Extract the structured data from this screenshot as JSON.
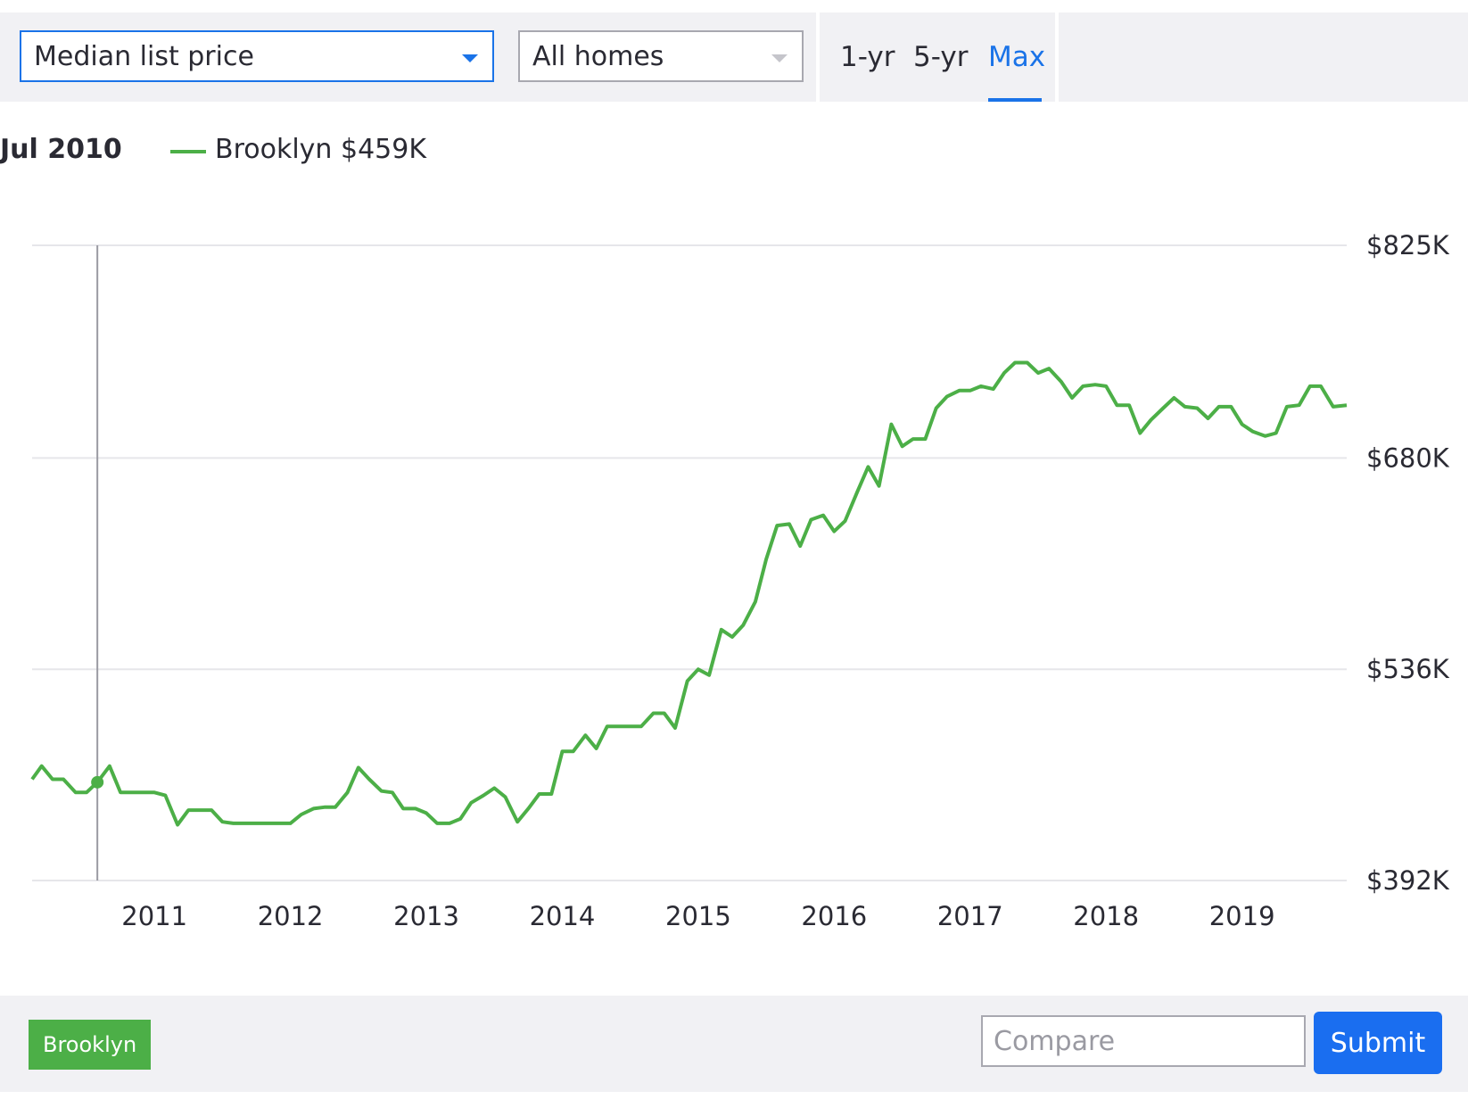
{
  "controls": {
    "metric_select": {
      "value": "Median list price"
    },
    "home_type_select": {
      "value": "All homes"
    },
    "ranges": [
      {
        "label": "1-yr",
        "active": false
      },
      {
        "label": "5-yr",
        "active": false
      },
      {
        "label": "Max",
        "active": true
      }
    ]
  },
  "legend": {
    "date": "Jul 2010",
    "entry": "Brooklyn $459K"
  },
  "colors": {
    "series": "#4caf47",
    "accent": "#1a73e8"
  },
  "bottom": {
    "chip_label": "Brooklyn",
    "compare_placeholder": "Compare",
    "submit_label": "Submit"
  },
  "chart_data": {
    "type": "line",
    "ylim": [
      392,
      825
    ],
    "y_unit": "$K",
    "y_ticks": [
      "$825K",
      "$680K",
      "$536K",
      "$392K"
    ],
    "y_tick_values": [
      825,
      680,
      536,
      392
    ],
    "x_ticks": [
      "2011",
      "2012",
      "2013",
      "2014",
      "2015",
      "2016",
      "2017",
      "2018",
      "2019"
    ],
    "x_tick_values": [
      2011,
      2012,
      2013,
      2014,
      2015,
      2016,
      2017,
      2018,
      2019
    ],
    "x_range": [
      2010.1,
      2019.77
    ],
    "grid": true,
    "highlight": {
      "x": 2010.58,
      "y": 459
    },
    "series": [
      {
        "name": "Brooklyn",
        "points": [
          [
            2010.1,
            461
          ],
          [
            2010.17,
            470
          ],
          [
            2010.25,
            461
          ],
          [
            2010.33,
            461
          ],
          [
            2010.42,
            452
          ],
          [
            2010.5,
            452
          ],
          [
            2010.58,
            459
          ],
          [
            2010.67,
            470
          ],
          [
            2010.75,
            452
          ],
          [
            2010.83,
            452
          ],
          [
            2010.92,
            452
          ],
          [
            2011.0,
            452
          ],
          [
            2011.08,
            450
          ],
          [
            2011.17,
            430
          ],
          [
            2011.25,
            440
          ],
          [
            2011.33,
            440
          ],
          [
            2011.42,
            440
          ],
          [
            2011.5,
            432
          ],
          [
            2011.58,
            431
          ],
          [
            2011.67,
            431
          ],
          [
            2011.75,
            431
          ],
          [
            2011.83,
            431
          ],
          [
            2011.92,
            431
          ],
          [
            2012.0,
            431
          ],
          [
            2012.08,
            437
          ],
          [
            2012.17,
            441
          ],
          [
            2012.25,
            442
          ],
          [
            2012.33,
            442
          ],
          [
            2012.42,
            452
          ],
          [
            2012.5,
            469
          ],
          [
            2012.58,
            461
          ],
          [
            2012.67,
            453
          ],
          [
            2012.75,
            452
          ],
          [
            2012.83,
            441
          ],
          [
            2012.92,
            441
          ],
          [
            2013.0,
            438
          ],
          [
            2013.08,
            431
          ],
          [
            2013.17,
            431
          ],
          [
            2013.25,
            434
          ],
          [
            2013.33,
            445
          ],
          [
            2013.42,
            450
          ],
          [
            2013.5,
            455
          ],
          [
            2013.58,
            449
          ],
          [
            2013.67,
            432
          ],
          [
            2013.75,
            441
          ],
          [
            2013.83,
            451
          ],
          [
            2013.92,
            451
          ],
          [
            2014.0,
            480
          ],
          [
            2014.08,
            480
          ],
          [
            2014.17,
            491
          ],
          [
            2014.25,
            482
          ],
          [
            2014.33,
            497
          ],
          [
            2014.42,
            497
          ],
          [
            2014.5,
            497
          ],
          [
            2014.58,
            497
          ],
          [
            2014.67,
            506
          ],
          [
            2014.75,
            506
          ],
          [
            2014.83,
            496
          ],
          [
            2014.92,
            528
          ],
          [
            2015.0,
            536
          ],
          [
            2015.08,
            532
          ],
          [
            2015.17,
            563
          ],
          [
            2015.25,
            558
          ],
          [
            2015.33,
            566
          ],
          [
            2015.42,
            582
          ],
          [
            2015.5,
            611
          ],
          [
            2015.58,
            634
          ],
          [
            2015.67,
            635
          ],
          [
            2015.75,
            620
          ],
          [
            2015.83,
            638
          ],
          [
            2015.92,
            641
          ],
          [
            2016.0,
            630
          ],
          [
            2016.08,
            637
          ],
          [
            2016.17,
            657
          ],
          [
            2016.25,
            674
          ],
          [
            2016.33,
            661
          ],
          [
            2016.42,
            703
          ],
          [
            2016.5,
            688
          ],
          [
            2016.58,
            693
          ],
          [
            2016.67,
            693
          ],
          [
            2016.75,
            714
          ],
          [
            2016.83,
            722
          ],
          [
            2016.92,
            726
          ],
          [
            2017.0,
            726
          ],
          [
            2017.08,
            729
          ],
          [
            2017.17,
            727
          ],
          [
            2017.25,
            738
          ],
          [
            2017.33,
            745
          ],
          [
            2017.42,
            745
          ],
          [
            2017.5,
            738
          ],
          [
            2017.58,
            741
          ],
          [
            2017.67,
            732
          ],
          [
            2017.75,
            721
          ],
          [
            2017.83,
            729
          ],
          [
            2017.92,
            730
          ],
          [
            2018.0,
            729
          ],
          [
            2018.08,
            716
          ],
          [
            2018.17,
            716
          ],
          [
            2018.25,
            697
          ],
          [
            2018.33,
            706
          ],
          [
            2018.42,
            714
          ],
          [
            2018.5,
            721
          ],
          [
            2018.58,
            715
          ],
          [
            2018.67,
            714
          ],
          [
            2018.75,
            707
          ],
          [
            2018.83,
            715
          ],
          [
            2018.92,
            715
          ],
          [
            2019.0,
            703
          ],
          [
            2019.08,
            698
          ],
          [
            2019.17,
            695
          ],
          [
            2019.25,
            697
          ],
          [
            2019.33,
            715
          ],
          [
            2019.42,
            716
          ],
          [
            2019.5,
            729
          ],
          [
            2019.58,
            729
          ],
          [
            2019.67,
            715
          ],
          [
            2019.77,
            716
          ]
        ]
      }
    ]
  }
}
